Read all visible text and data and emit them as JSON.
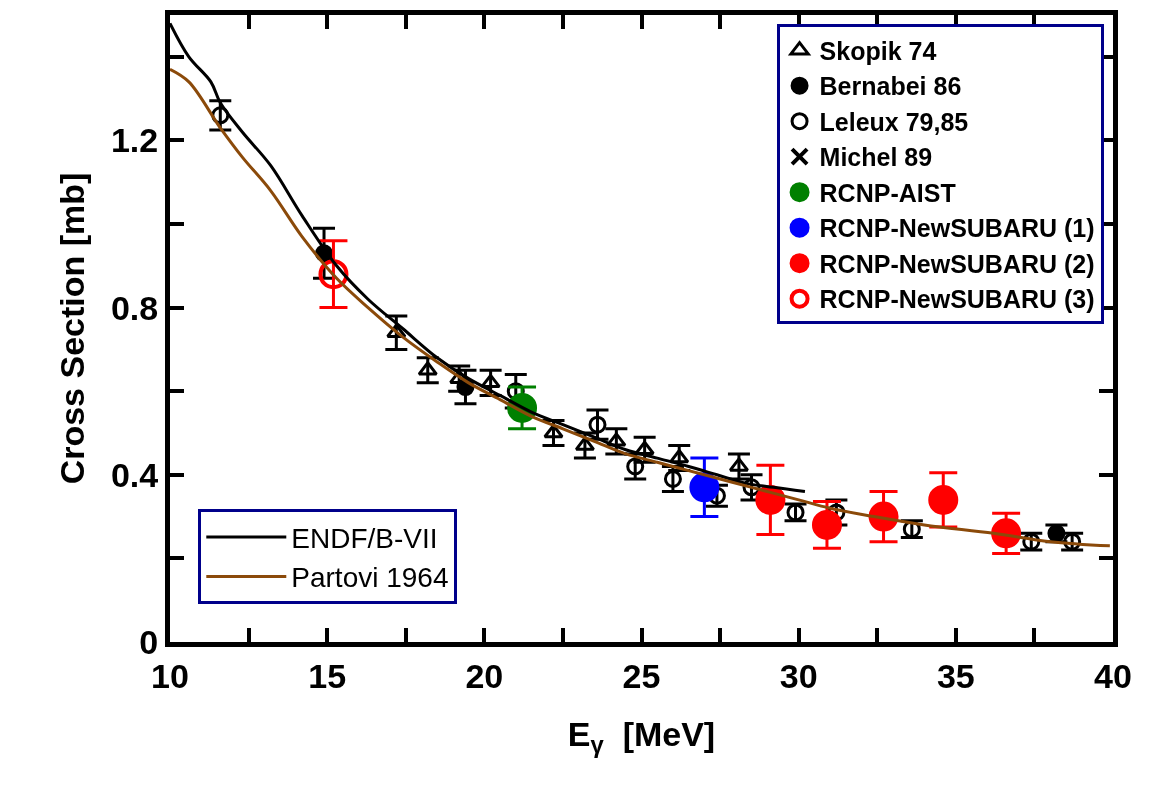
{
  "chart_data": {
    "type": "scatter",
    "xlabel": "E$_{γ}$  [MeV]",
    "ylabel": "Cross Section [mb]",
    "xlim": [
      10,
      40
    ],
    "xticks": [
      10,
      {
        "value": 12.5,
        "label": null
      },
      15,
      {
        "value": 17.5,
        "label": null
      },
      20,
      {
        "value": 22.5,
        "label": null
      },
      25,
      {
        "value": 27.5,
        "label": null
      },
      30,
      {
        "value": 32.5,
        "label": null
      },
      35,
      {
        "value": 37.5,
        "label": null
      },
      40
    ],
    "ylim": [
      0,
      1.5
    ],
    "yticks": [
      {
        "value": 0,
        "label": "0"
      },
      {
        "value": 0.2,
        "label": null
      },
      {
        "value": 0.4,
        "label": "0.4"
      },
      {
        "value": 0.6,
        "label": null
      },
      {
        "value": 0.8,
        "label": "0.8"
      },
      {
        "value": 1.0,
        "label": null
      },
      {
        "value": 1.2,
        "label": "1.2"
      },
      {
        "value": 1.4,
        "label": null
      }
    ],
    "legend": "top right",
    "series": [
      {
        "name": "Skopik 74",
        "color": "#000000",
        "marker": "triangle-open",
        "x": [
          17.2,
          18.2,
          19.2,
          20.2,
          22.2,
          23.2,
          24.2,
          25.1,
          26.2,
          28.1
        ],
        "values": [
          0.74,
          0.65,
          0.63,
          0.62,
          0.5,
          0.47,
          0.48,
          0.46,
          0.44,
          0.42
        ],
        "errors": [
          0.04,
          0.03,
          0.03,
          0.03,
          0.03,
          0.03,
          0.03,
          0.03,
          0.03,
          0.03
        ]
      },
      {
        "name": "Bernabei 86",
        "color": "#000000",
        "marker": "circle",
        "x": [
          14.9,
          19.4,
          38.2
        ],
        "values": [
          0.93,
          0.61,
          0.26
        ],
        "errors": [
          0.06,
          0.04,
          0.02
        ]
      },
      {
        "name": "Leleux 79,85",
        "color": "#000000",
        "marker": "circle-open",
        "x": [
          11.6,
          21.0,
          23.6,
          24.8,
          26.0,
          27.4,
          28.5,
          29.9,
          31.2,
          33.6,
          37.4,
          38.7
        ],
        "values": [
          1.26,
          0.6,
          0.52,
          0.42,
          0.39,
          0.35,
          0.37,
          0.31,
          0.31,
          0.27,
          0.24,
          0.24
        ],
        "errors": [
          0.035,
          0.04,
          0.035,
          0.03,
          0.03,
          0.025,
          0.03,
          0.02,
          0.03,
          0.02,
          0.02,
          0.02
        ]
      },
      {
        "name": "Michel 89",
        "color": "#000000",
        "marker": "cross",
        "values": [
          null
        ]
      },
      {
        "name": "RCNP-AIST",
        "color": "#008000",
        "marker": "circle",
        "x": [
          21.2
        ],
        "values": [
          0.56
        ],
        "errors": [
          0.05
        ]
      },
      {
        "name": "RCNP-NewSUBARU (1)",
        "color": "#0000ff",
        "marker": "circle",
        "x": [
          27.0
        ],
        "values": [
          0.37
        ],
        "errors": [
          0.07
        ]
      },
      {
        "name": "RCNP-NewSUBARU (2)",
        "color": "#ff0000",
        "marker": "circle",
        "x": [
          29.1,
          30.9,
          32.7,
          34.6,
          36.6
        ],
        "values": [
          0.34,
          0.28,
          0.3,
          0.34,
          0.26
        ],
        "errors": [
          0.083,
          0.056,
          0.06,
          0.065,
          0.048
        ]
      },
      {
        "name": "RCNP-NewSUBARU (3)",
        "color": "#ff0000",
        "marker": "circle-open",
        "x": [
          15.2
        ],
        "values": [
          0.88
        ],
        "errors": [
          0.08
        ]
      },
      {
        "name": "ENDF/B-VII",
        "type": "line",
        "color": "#000000",
        "x": [
          10,
          10.6,
          11.3,
          11.6,
          12.3,
          13.2,
          14.2,
          15.3,
          16.3,
          17.4,
          18.5,
          19.5,
          20.5,
          21.5,
          22.5,
          23.5,
          24.5,
          25.5,
          26.5,
          27.4,
          28.3,
          29.2,
          30.2
        ],
        "values": [
          1.48,
          1.4,
          1.34,
          1.29,
          1.22,
          1.14,
          1.02,
          0.9,
          0.82,
          0.75,
          0.68,
          0.63,
          0.59,
          0.55,
          0.52,
          0.49,
          0.46,
          0.44,
          0.42,
          0.4,
          0.38,
          0.37,
          0.36
        ]
      },
      {
        "name": "Partovi 1964",
        "type": "line",
        "color": "#8b4a0a",
        "x": [
          10,
          10.6,
          11.6,
          12.3,
          13.2,
          14.2,
          15.3,
          16.3,
          17.4,
          18.5,
          19.5,
          20.5,
          21.5,
          22.5,
          23.5,
          24.5,
          25.5,
          26.5,
          27.5,
          28.5,
          30,
          31,
          32.4,
          34,
          36.2,
          38,
          39.9
        ],
        "values": [
          1.37,
          1.34,
          1.23,
          1.16,
          1.08,
          0.97,
          0.87,
          0.8,
          0.73,
          0.67,
          0.62,
          0.58,
          0.54,
          0.51,
          0.48,
          0.45,
          0.43,
          0.41,
          0.39,
          0.37,
          0.34,
          0.32,
          0.3,
          0.28,
          0.26,
          0.24,
          0.23
        ]
      }
    ]
  }
}
